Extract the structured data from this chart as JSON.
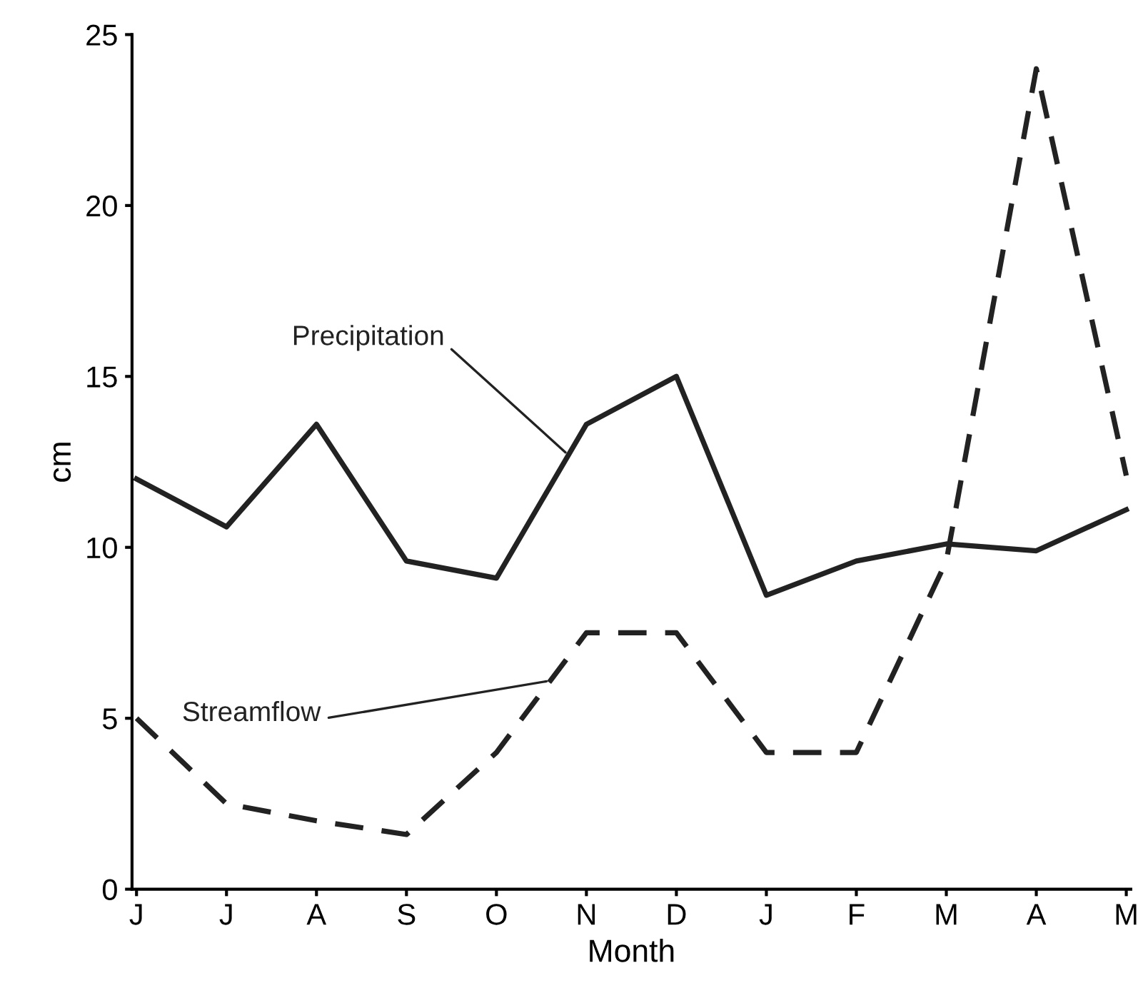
{
  "chart_data": {
    "type": "line",
    "xlabel": "Month",
    "ylabel": "cm",
    "categories": [
      "J",
      "J",
      "A",
      "S",
      "O",
      "N",
      "D",
      "J",
      "F",
      "M",
      "A",
      "M"
    ],
    "ylim": [
      0,
      25
    ],
    "yticks": [
      0,
      5,
      10,
      15,
      20,
      25
    ],
    "grid": false,
    "legend": false,
    "marker": "none",
    "series": [
      {
        "name": "Precipitation",
        "color": "#222222",
        "line_style": "solid",
        "values": [
          12,
          10.6,
          13.6,
          9.6,
          9.1,
          13.6,
          15,
          8.6,
          9.6,
          10.1,
          9.9,
          11.1
        ]
      },
      {
        "name": "Streamflow",
        "color": "#222222",
        "line_style": "dashed",
        "values": [
          5,
          2.5,
          2,
          1.6,
          4,
          7.5,
          7.5,
          4,
          4,
          9.6,
          24,
          12.1
        ]
      }
    ]
  }
}
